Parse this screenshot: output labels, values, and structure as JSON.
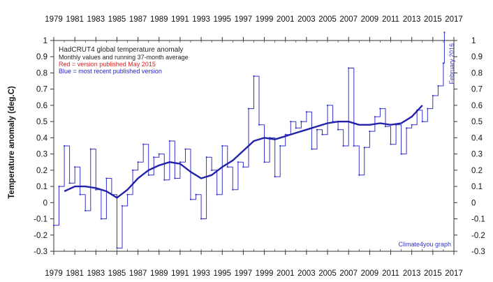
{
  "chart_data": {
    "type": "line",
    "title": "HadCRUT4 global temperature anomaly",
    "subtitle": "Monthly values and running 37-month average",
    "legend": [
      {
        "text": "Red = version published May 2015",
        "color": "#dd2222"
      },
      {
        "text": "Blue = most recent published version",
        "color": "#2222cc"
      }
    ],
    "legend_position": "top-left",
    "ylabel": "Temperature anomaly (deg.C)",
    "xlabel": "",
    "ylim": [
      -0.3,
      1.0
    ],
    "xlim": [
      1979,
      2017
    ],
    "y_ticks": [
      "1",
      "0.9",
      "0.8",
      "0.7",
      "0.6",
      "0.5",
      "0.4",
      "0.3",
      "0.2",
      "0.1",
      "0",
      "-0.1",
      "-0.2",
      "-0.3"
    ],
    "x_ticks": [
      "1979",
      "1981",
      "1983",
      "1985",
      "1987",
      "1989",
      "1991",
      "1993",
      "1995",
      "1997",
      "1999",
      "2001",
      "2003",
      "2005",
      "2007",
      "2009",
      "2011",
      "2013",
      "2015",
      "2017"
    ],
    "annotations": [
      {
        "text": "February 2016",
        "x": 2016.1,
        "y": 0.99
      },
      {
        "text": "Climate4you graph",
        "position": "bottom-right"
      }
    ],
    "grid": false,
    "series": [
      {
        "name": "Monthly values",
        "color": "#3333cc",
        "x": [
          1979.0,
          1979.5,
          1980.0,
          1980.5,
          1981.0,
          1981.5,
          1982.0,
          1982.5,
          1983.0,
          1983.5,
          1984.0,
          1984.5,
          1985.0,
          1985.5,
          1986.0,
          1986.5,
          1987.0,
          1987.5,
          1988.0,
          1988.5,
          1989.0,
          1989.5,
          1990.0,
          1990.5,
          1991.0,
          1991.5,
          1992.0,
          1992.5,
          1993.0,
          1993.5,
          1994.0,
          1994.5,
          1995.0,
          1995.5,
          1996.0,
          1996.5,
          1997.0,
          1997.5,
          1998.0,
          1998.5,
          1999.0,
          1999.5,
          2000.0,
          2000.5,
          2001.0,
          2001.5,
          2002.0,
          2002.5,
          2003.0,
          2003.5,
          2004.0,
          2004.5,
          2005.0,
          2005.5,
          2006.0,
          2006.5,
          2007.0,
          2007.5,
          2008.0,
          2008.5,
          2009.0,
          2009.5,
          2010.0,
          2010.5,
          2011.0,
          2011.5,
          2012.0,
          2012.5,
          2013.0,
          2013.5,
          2014.0,
          2014.5,
          2015.0,
          2015.5,
          2016.0,
          2016.1
        ],
        "values": [
          -0.14,
          0.1,
          0.35,
          0.12,
          0.22,
          0.05,
          -0.05,
          0.33,
          0.08,
          -0.1,
          0.15,
          0.05,
          -0.28,
          -0.02,
          0.05,
          0.2,
          0.25,
          0.36,
          0.17,
          0.28,
          0.3,
          0.14,
          0.38,
          0.15,
          0.25,
          0.33,
          0.02,
          0.05,
          -0.1,
          0.28,
          0.2,
          0.05,
          0.35,
          0.22,
          0.08,
          0.25,
          0.22,
          0.58,
          0.78,
          0.48,
          0.25,
          0.4,
          0.16,
          0.35,
          0.42,
          0.5,
          0.46,
          0.5,
          0.56,
          0.33,
          0.45,
          0.42,
          0.6,
          0.5,
          0.45,
          0.35,
          0.83,
          0.35,
          0.17,
          0.34,
          0.44,
          0.53,
          0.58,
          0.47,
          0.36,
          0.48,
          0.3,
          0.46,
          0.48,
          0.57,
          0.5,
          0.58,
          0.66,
          0.72,
          0.86,
          1.05
        ]
      },
      {
        "name": "Running 37-month average",
        "color": "#2222aa",
        "x": [
          1980.0,
          1981.0,
          1982.0,
          1983.0,
          1984.0,
          1985.0,
          1986.0,
          1987.0,
          1988.0,
          1989.0,
          1990.0,
          1991.0,
          1992.0,
          1993.0,
          1994.0,
          1995.0,
          1996.0,
          1997.0,
          1998.0,
          1999.0,
          2000.0,
          2001.0,
          2002.0,
          2003.0,
          2004.0,
          2005.0,
          2006.0,
          2007.0,
          2008.0,
          2009.0,
          2010.0,
          2011.0,
          2012.0,
          2013.0,
          2014.0
        ],
        "values": [
          0.07,
          0.1,
          0.1,
          0.09,
          0.07,
          0.03,
          0.08,
          0.15,
          0.2,
          0.23,
          0.25,
          0.24,
          0.19,
          0.15,
          0.17,
          0.22,
          0.26,
          0.32,
          0.38,
          0.4,
          0.39,
          0.41,
          0.43,
          0.45,
          0.47,
          0.49,
          0.5,
          0.5,
          0.48,
          0.48,
          0.49,
          0.48,
          0.49,
          0.53,
          0.6
        ]
      }
    ]
  }
}
